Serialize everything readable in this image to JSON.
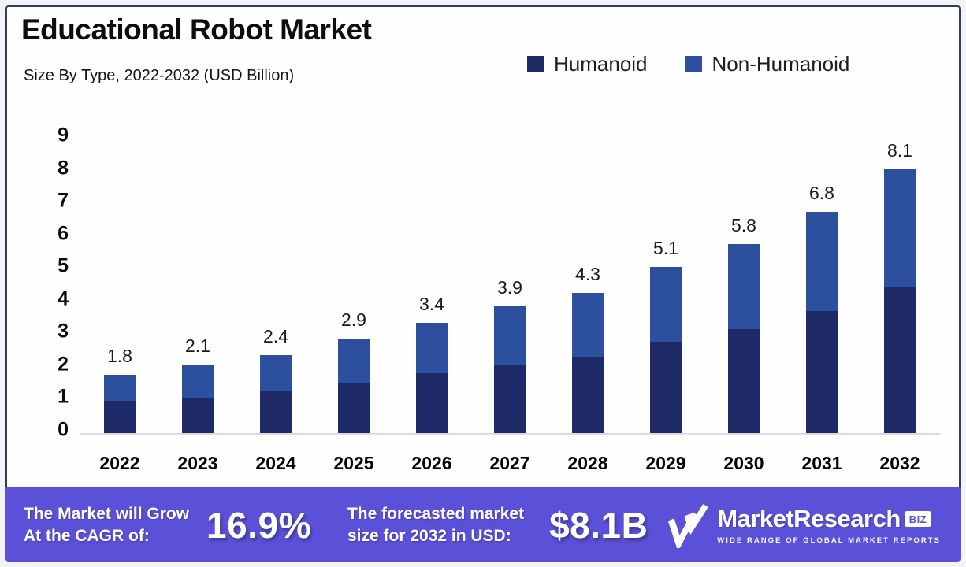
{
  "frame": {
    "border_color": "#2d3f5a",
    "background": "#fefefe"
  },
  "header": {
    "title": "Educational Robot Market",
    "subtitle": "Size By Type, 2022-2032 (USD Billion)"
  },
  "legend": [
    {
      "label": "Humanoid",
      "color": "#1e2a68"
    },
    {
      "label": "Non-Humanoid",
      "color": "#2c509e"
    }
  ],
  "chart_data": {
    "type": "bar",
    "stacked": true,
    "title": "Educational Robot Market",
    "subtitle": "Size By Type, 2022-2032 (USD Billion)",
    "xlabel": "",
    "ylabel": "",
    "ylim": [
      0,
      9
    ],
    "yticks": [
      0,
      1,
      2,
      3,
      4,
      5,
      6,
      7,
      8,
      9
    ],
    "grid": false,
    "legend_position": "top-right",
    "categories": [
      "2022",
      "2023",
      "2024",
      "2025",
      "2026",
      "2027",
      "2028",
      "2029",
      "2030",
      "2031",
      "2032"
    ],
    "series": [
      {
        "name": "Humanoid",
        "color": "#1e2a68",
        "values": [
          1.0,
          1.1,
          1.3,
          1.55,
          1.85,
          2.1,
          2.35,
          2.8,
          3.2,
          3.75,
          4.5
        ]
      },
      {
        "name": "Non-Humanoid",
        "color": "#2c509e",
        "values": [
          0.8,
          1.0,
          1.1,
          1.35,
          1.55,
          1.8,
          1.95,
          2.3,
          2.6,
          3.05,
          3.6
        ]
      }
    ],
    "totals": [
      1.8,
      2.1,
      2.4,
      2.9,
      3.4,
      3.9,
      4.3,
      5.1,
      5.8,
      6.8,
      8.1
    ],
    "total_labels": [
      "1.8",
      "2.1",
      "2.4",
      "2.9",
      "3.4",
      "3.9",
      "4.3",
      "5.1",
      "5.8",
      "6.8",
      "8.1"
    ]
  },
  "footer": {
    "background": "#5b51d8",
    "cagr_line1": "The Market will Grow",
    "cagr_line2": "At the CAGR of:",
    "cagr_value": "16.9%",
    "forecast_line1": "The forecasted market",
    "forecast_line2": "size for 2032 in USD:",
    "forecast_value": "$8.1B",
    "brand": {
      "name": "MarketResearch",
      "suffix": "BIZ",
      "tagline": "WIDE RANGE OF GLOBAL MARKET REPORTS"
    }
  }
}
